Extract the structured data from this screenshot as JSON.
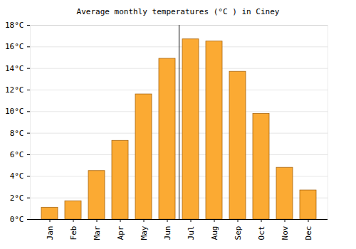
{
  "chart_data": {
    "type": "bar",
    "title": "Average monthly temperatures (°C ) in Ciney",
    "categories": [
      "Jan",
      "Feb",
      "Mar",
      "Apr",
      "May",
      "Jun",
      "Jul",
      "Aug",
      "Sep",
      "Oct",
      "Nov",
      "Dec"
    ],
    "values": [
      1.1,
      1.7,
      4.5,
      7.3,
      11.6,
      14.9,
      16.7,
      16.5,
      13.7,
      9.8,
      4.8,
      2.7
    ],
    "color": "#fbaa33",
    "ylim": [
      0,
      18
    ],
    "yticks": [
      {
        "value": 0,
        "label": "0°C"
      },
      {
        "value": 2,
        "label": "2°C"
      },
      {
        "value": 4,
        "label": "4°C"
      },
      {
        "value": 6,
        "label": "6°C"
      },
      {
        "value": 8,
        "label": "8°C"
      },
      {
        "value": 10,
        "label": "10°C"
      },
      {
        "value": 12,
        "label": "12°C"
      },
      {
        "value": 14,
        "label": "14°C"
      },
      {
        "value": 16,
        "label": "16°C"
      },
      {
        "value": 18,
        "label": "18°C"
      }
    ],
    "grid": true
  }
}
